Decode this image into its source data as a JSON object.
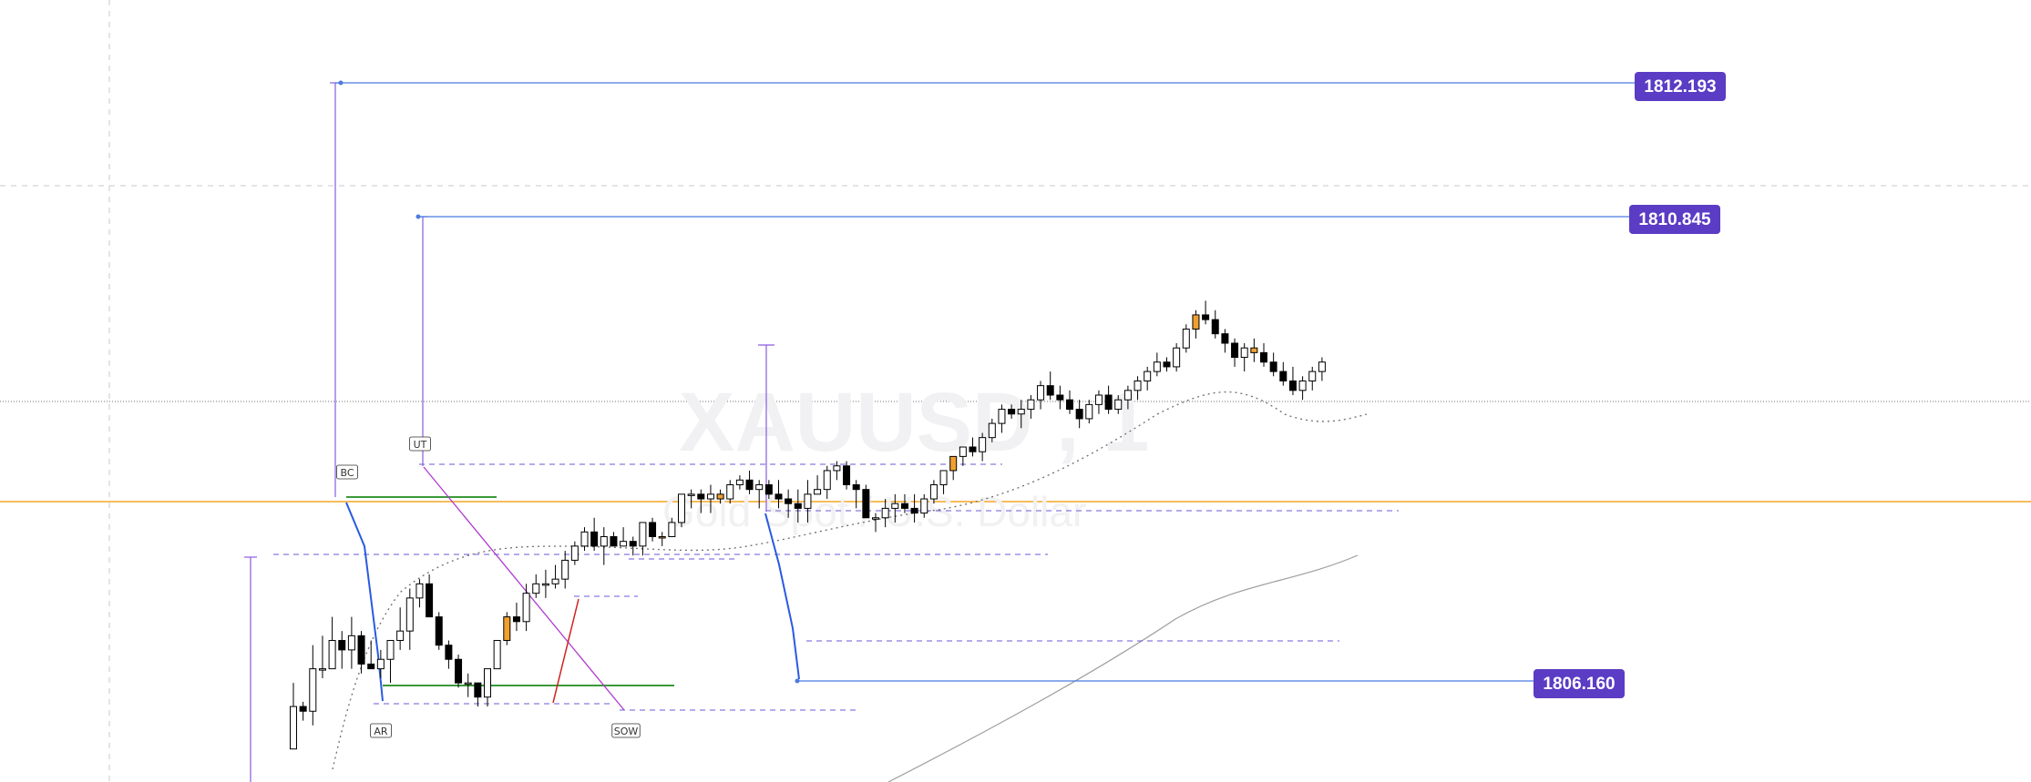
{
  "chart_data": {
    "type": "candlestick",
    "symbol": "XAUUSD , 1",
    "description": "Gold Spot / U.S. Dollar",
    "price_levels": [
      {
        "label": "1812.193",
        "color": "#5b3cc4"
      },
      {
        "label": "1810.845",
        "color": "#5b3cc4"
      },
      {
        "label": "1806.160",
        "color": "#5b3cc4"
      }
    ],
    "annotations": [
      "BC",
      "UT",
      "AR",
      "SOW"
    ],
    "colors": {
      "bull": "#ffffff",
      "bear": "#000000",
      "highlight": "#f0a030",
      "level_line": "#4a7be0",
      "range_line": "#8a5be0",
      "support_line": "#3a9a3a",
      "horizontal_price": "#f5a623",
      "tag_bg": "#5b3cc4"
    },
    "candles": [
      [
        1807.9,
        1809.3,
        1807.9,
        1808.8
      ],
      [
        1808.8,
        1808.9,
        1808.5,
        1808.7
      ],
      [
        1808.7,
        1810.1,
        1808.4,
        1809.6
      ],
      [
        1809.6,
        1810.3,
        1809.4,
        1809.6
      ],
      [
        1809.6,
        1810.7,
        1809.6,
        1810.2
      ],
      [
        1810.2,
        1810.4,
        1809.6,
        1810.0
      ],
      [
        1810.0,
        1810.7,
        1809.6,
        1810.3
      ],
      [
        1810.3,
        1810.4,
        1809.5,
        1809.7
      ],
      [
        1809.7,
        1810.2,
        1809.6,
        1809.6
      ],
      [
        1809.6,
        1810.0,
        1809.4,
        1809.8
      ],
      [
        1809.8,
        1810.2,
        1809.3,
        1810.2
      ],
      [
        1810.2,
        1810.9,
        1810.0,
        1810.4
      ],
      [
        1810.4,
        1811.3,
        1810.0,
        1811.1
      ],
      [
        1811.1,
        1811.5,
        1810.9,
        1811.4
      ],
      [
        1811.4,
        1811.6,
        1810.7,
        1810.7
      ],
      [
        1810.7,
        1810.8,
        1810.0,
        1810.1
      ],
      [
        1810.1,
        1810.2,
        1809.6,
        1809.8
      ],
      [
        1809.8,
        1809.9,
        1809.2,
        1809.3
      ],
      [
        1809.3,
        1809.5,
        1809.0,
        1809.3
      ],
      [
        1809.3,
        1809.3,
        1808.8,
        1809.0
      ],
      [
        1809.0,
        1809.6,
        1808.8,
        1809.6
      ],
      [
        1809.6,
        1810.2,
        1809.6,
        1810.2
      ],
      [
        1810.2,
        1810.8,
        1810.1,
        1810.7
      ],
      [
        1810.7,
        1811.0,
        1810.4,
        1810.6
      ],
      [
        1810.6,
        1811.4,
        1810.4,
        1811.2
      ],
      [
        1811.2,
        1811.6,
        1811.1,
        1811.4
      ],
      [
        1811.4,
        1811.7,
        1811.1,
        1811.4
      ],
      [
        1811.4,
        1811.8,
        1811.3,
        1811.5
      ],
      [
        1811.5,
        1812.1,
        1811.3,
        1811.9
      ],
      [
        1811.9,
        1812.3,
        1811.8,
        1812.2
      ],
      [
        1812.2,
        1812.6,
        1812.1,
        1812.5
      ],
      [
        1812.5,
        1812.8,
        1812.1,
        1812.2
      ],
      [
        1812.2,
        1812.6,
        1811.8,
        1812.4
      ],
      [
        1812.4,
        1812.5,
        1812.2,
        1812.2
      ],
      [
        1812.2,
        1812.6,
        1812.2,
        1812.3
      ],
      [
        1812.3,
        1812.4,
        1812.0,
        1812.2
      ],
      [
        1812.2,
        1812.7,
        1812.0,
        1812.7
      ],
      [
        1812.7,
        1812.8,
        1812.3,
        1812.4
      ],
      [
        1812.4,
        1812.5,
        1812.2,
        1812.4
      ],
      [
        1812.4,
        1812.8,
        1812.4,
        1812.7
      ],
      [
        1812.7,
        1813.3,
        1812.6,
        1813.3
      ],
      [
        1813.3,
        1813.4,
        1813.0,
        1813.3
      ],
      [
        1813.3,
        1813.4,
        1812.9,
        1813.2
      ],
      [
        1813.2,
        1813.5,
        1812.9,
        1813.3
      ],
      [
        1813.3,
        1813.4,
        1813.1,
        1813.2
      ],
      [
        1813.2,
        1813.6,
        1813.1,
        1813.5
      ],
      [
        1813.5,
        1813.7,
        1813.4,
        1813.6
      ],
      [
        1813.6,
        1813.8,
        1813.3,
        1813.4
      ],
      [
        1813.4,
        1813.6,
        1813.0,
        1813.5
      ],
      [
        1813.5,
        1813.6,
        1813.2,
        1813.3
      ],
      [
        1813.3,
        1813.6,
        1813.0,
        1813.2
      ],
      [
        1813.2,
        1813.4,
        1812.8,
        1813.1
      ],
      [
        1813.1,
        1813.4,
        1812.7,
        1813.0
      ],
      [
        1813.0,
        1813.6,
        1812.7,
        1813.3
      ],
      [
        1813.3,
        1813.7,
        1813.3,
        1813.4
      ],
      [
        1813.4,
        1813.9,
        1813.2,
        1813.8
      ],
      [
        1813.8,
        1814.0,
        1813.6,
        1813.9
      ],
      [
        1813.9,
        1814.0,
        1813.4,
        1813.5
      ],
      [
        1813.5,
        1813.6,
        1813.0,
        1813.4
      ],
      [
        1813.4,
        1813.5,
        1812.8,
        1812.8
      ],
      [
        1812.8,
        1812.9,
        1812.5,
        1812.8
      ],
      [
        1812.8,
        1813.2,
        1812.6,
        1813.0
      ],
      [
        1813.0,
        1813.3,
        1812.7,
        1813.1
      ],
      [
        1813.1,
        1813.3,
        1812.9,
        1813.0
      ],
      [
        1813.0,
        1813.3,
        1812.7,
        1812.9
      ],
      [
        1812.9,
        1813.3,
        1812.8,
        1813.2
      ],
      [
        1813.2,
        1813.6,
        1813.1,
        1813.5
      ],
      [
        1813.5,
        1813.8,
        1813.3,
        1813.8
      ],
      [
        1813.8,
        1814.1,
        1813.6,
        1814.1
      ],
      [
        1814.1,
        1814.3,
        1813.9,
        1814.3
      ],
      [
        1814.3,
        1814.5,
        1814.1,
        1814.2
      ],
      [
        1814.2,
        1814.6,
        1814.0,
        1814.5
      ],
      [
        1814.5,
        1814.9,
        1814.4,
        1814.8
      ],
      [
        1814.8,
        1815.2,
        1814.6,
        1815.1
      ],
      [
        1815.1,
        1815.2,
        1814.9,
        1815.0
      ],
      [
        1815.0,
        1815.3,
        1814.7,
        1815.1
      ],
      [
        1815.1,
        1815.4,
        1814.9,
        1815.3
      ],
      [
        1815.3,
        1815.7,
        1815.1,
        1815.6
      ],
      [
        1815.6,
        1815.9,
        1815.3,
        1815.4
      ],
      [
        1815.4,
        1815.6,
        1815.1,
        1815.3
      ],
      [
        1815.3,
        1815.5,
        1815.0,
        1815.1
      ],
      [
        1815.1,
        1815.3,
        1814.7,
        1814.9
      ],
      [
        1814.9,
        1815.3,
        1814.8,
        1815.2
      ],
      [
        1815.2,
        1815.5,
        1815.0,
        1815.4
      ],
      [
        1815.4,
        1815.6,
        1815.0,
        1815.1
      ],
      [
        1815.1,
        1815.4,
        1815.0,
        1815.3
      ],
      [
        1815.3,
        1815.6,
        1815.1,
        1815.5
      ],
      [
        1815.5,
        1815.8,
        1815.3,
        1815.7
      ],
      [
        1815.7,
        1816.0,
        1815.5,
        1815.9
      ],
      [
        1815.9,
        1816.3,
        1815.8,
        1816.1
      ],
      [
        1816.1,
        1816.2,
        1815.9,
        1816.0
      ],
      [
        1816.0,
        1816.5,
        1815.9,
        1816.4
      ],
      [
        1816.4,
        1816.9,
        1816.3,
        1816.8
      ],
      [
        1816.8,
        1817.2,
        1816.6,
        1817.1
      ],
      [
        1817.1,
        1817.4,
        1816.9,
        1817.0
      ],
      [
        1817.0,
        1817.2,
        1816.6,
        1816.7
      ],
      [
        1816.7,
        1816.8,
        1816.3,
        1816.5
      ],
      [
        1816.5,
        1816.6,
        1816.0,
        1816.2
      ],
      [
        1816.2,
        1816.5,
        1815.9,
        1816.4
      ],
      [
        1816.4,
        1816.6,
        1816.1,
        1816.3
      ],
      [
        1816.3,
        1816.5,
        1816.0,
        1816.1
      ],
      [
        1816.1,
        1816.3,
        1815.8,
        1815.9
      ],
      [
        1815.9,
        1816.1,
        1815.6,
        1815.7
      ],
      [
        1815.7,
        1816.0,
        1815.4,
        1815.5
      ],
      [
        1815.5,
        1815.8,
        1815.3,
        1815.7
      ],
      [
        1815.7,
        1816.0,
        1815.5,
        1815.9
      ],
      [
        1815.9,
        1816.2,
        1815.7,
        1816.1
      ]
    ]
  }
}
